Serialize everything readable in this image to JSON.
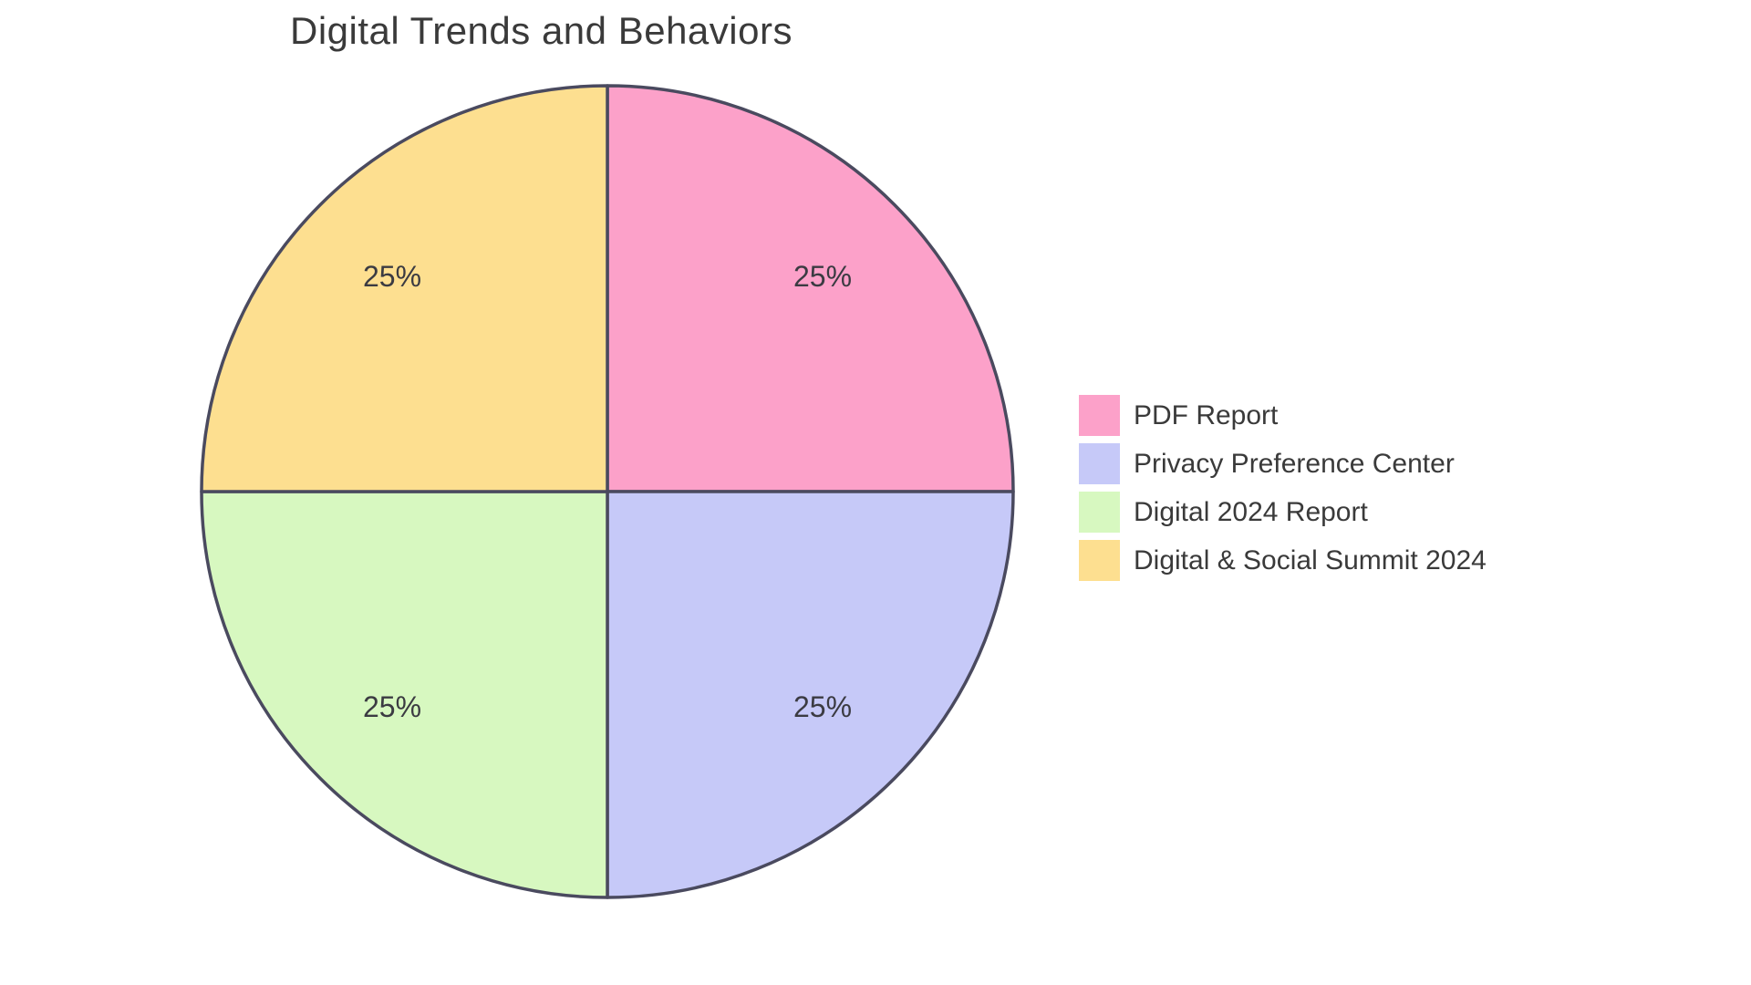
{
  "title": "Digital Trends and Behaviors",
  "chart_data": {
    "type": "pie",
    "title": "Digital Trends and Behaviors",
    "labels": [
      "PDF Report",
      "Privacy Preference Center",
      "Digital 2024 Report",
      "Digital & Social Summit 2024"
    ],
    "values": [
      25,
      25,
      25,
      25
    ],
    "percent_labels": [
      "25%",
      "25%",
      "25%",
      "25%"
    ],
    "colors": [
      "#FCA1C9",
      "#C6C9F8",
      "#D7F8C0",
      "#FDDF90"
    ],
    "stroke_color": "#4A4A5F",
    "percent_label_color": "#3B3B42",
    "text_color": "#3A3A3A",
    "start_angle": "12-oclock",
    "direction": "clockwise",
    "legend_position": "right",
    "legend_entries": [
      "PDF Report",
      "Privacy Preference Center",
      "Digital 2024 Report",
      "Digital & Social Summit 2024"
    ]
  }
}
